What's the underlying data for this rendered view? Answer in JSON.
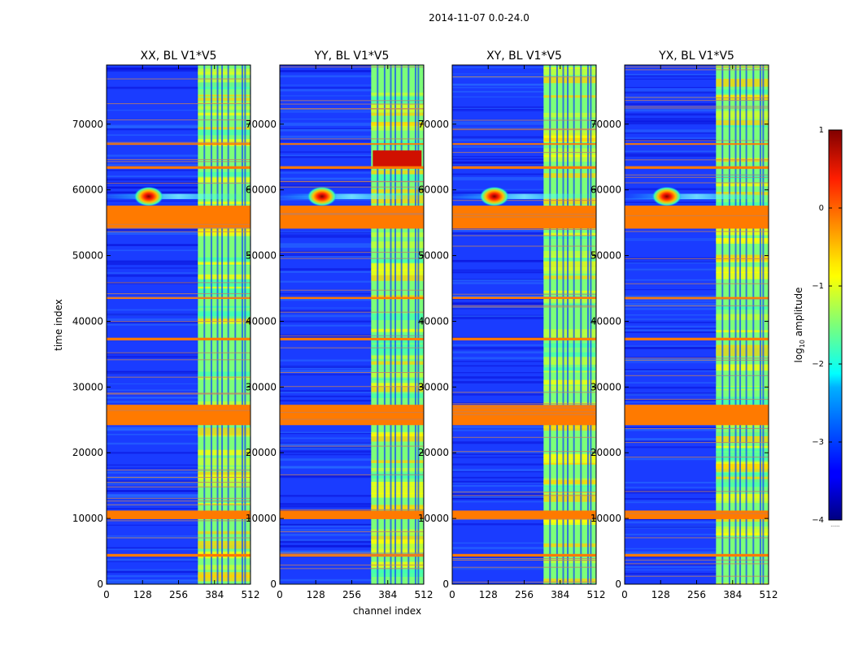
{
  "chart_data": {
    "type": "heatmap",
    "suptitle": "2014-11-07 0.0-24.0",
    "xlabel": "channel index",
    "ylabel": "time index",
    "xlim": [
      0,
      512
    ],
    "ylim": [
      0,
      79000
    ],
    "x_ticks": [
      0,
      128,
      256,
      384,
      512
    ],
    "y_ticks": [
      0,
      10000,
      20000,
      30000,
      40000,
      50000,
      60000,
      70000
    ],
    "panels": [
      {
        "title": "XX, BL V1*V5",
        "feature": "Strong RFI point source near channel 150, time ~59000; bright band channels ~325-510"
      },
      {
        "title": "YY, BL V1*V5",
        "feature": "Strong RFI point source near channel 150, time ~59000; saturated blocks around time ~64000"
      },
      {
        "title": "XY, BL V1*V5",
        "feature": "Strong RFI point source near channel 150, time ~59000; bright band channels ~325-510"
      },
      {
        "title": "YX, BL V1*V5",
        "feature": "Strong RFI point source near channel 150, time ~59000; bright band channels ~325-510"
      }
    ],
    "bright_channel_band": [
      325,
      510
    ],
    "rfi_time_bands": [
      {
        "start": 24200,
        "end": 27300
      },
      {
        "start": 9900,
        "end": 11200
      },
      {
        "start": 54100,
        "end": 57600
      },
      {
        "start": 63200,
        "end": 63600
      },
      {
        "start": 37100,
        "end": 37500
      },
      {
        "start": 4200,
        "end": 4600
      },
      {
        "start": 43400,
        "end": 43700
      },
      {
        "start": 66900,
        "end": 67100
      }
    ],
    "colorbar": {
      "label": "log10 amplitude",
      "label_main": "log",
      "label_sub": "10",
      "label_rest": " amplitude",
      "range": [
        -4,
        1
      ],
      "ticks": [
        "1",
        "0",
        "−1",
        "−2",
        "−3",
        "−4"
      ],
      "colormap": "jet",
      "extension_marker": "......"
    }
  }
}
